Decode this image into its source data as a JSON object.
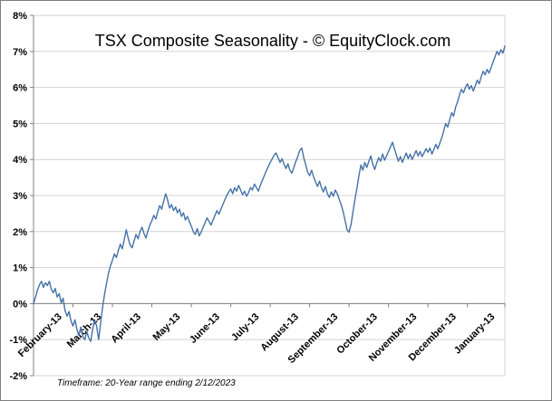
{
  "colors": {
    "line": "#4572a7",
    "grid": "#d3d3d3",
    "axis": "#808080",
    "tick_text": "#000000",
    "border": "#7f7f7f",
    "background": "#ffffff"
  },
  "chart_data": {
    "type": "line",
    "title": "TSX Composite Seasonality - © EquityClock.com",
    "footer_note": "Timeframe: 20-Year range ending 2/12/2023",
    "legend": "none",
    "grid": "horizontal",
    "x_axis": {
      "categories": [
        "February-13",
        "March-13",
        "April-13",
        "May-13",
        "June-13",
        "July-13",
        "August-13",
        "September-13",
        "October-13",
        "November-13",
        "December-13",
        "January-13"
      ],
      "points_per_month": 20
    },
    "y_axis": {
      "min": -2,
      "max": 8,
      "step": 1,
      "tick_labels": [
        "8%",
        "7%",
        "6%",
        "5%",
        "4%",
        "3%",
        "2%",
        "1%",
        "0%",
        "-1%",
        "-2%"
      ]
    },
    "series": [
      {
        "name": "TSX Composite Seasonality",
        "color": "#4572a7",
        "values": [
          0.0,
          0.18,
          0.38,
          0.52,
          0.62,
          0.45,
          0.58,
          0.5,
          0.62,
          0.4,
          0.3,
          0.42,
          0.18,
          0.28,
          0.02,
          0.15,
          -0.2,
          -0.35,
          -0.22,
          -0.48,
          -0.62,
          -0.45,
          -0.72,
          -0.88,
          -0.65,
          -0.92,
          -1.0,
          -0.78,
          -0.95,
          -1.05,
          -0.7,
          -0.45,
          -0.62,
          -1.0,
          -0.55,
          -0.1,
          0.25,
          0.55,
          0.85,
          1.05,
          1.2,
          1.38,
          1.28,
          1.48,
          1.65,
          1.52,
          1.78,
          2.05,
          1.82,
          1.62,
          1.55,
          1.75,
          1.92,
          1.8,
          2.0,
          2.12,
          1.95,
          1.82,
          2.02,
          2.18,
          2.3,
          2.45,
          2.35,
          2.55,
          2.72,
          2.62,
          2.85,
          3.05,
          2.88,
          2.65,
          2.75,
          2.58,
          2.68,
          2.52,
          2.62,
          2.42,
          2.52,
          2.32,
          2.42,
          2.28,
          2.15,
          2.0,
          1.92,
          2.08,
          1.88,
          1.98,
          2.12,
          2.25,
          2.38,
          2.28,
          2.18,
          2.32,
          2.45,
          2.58,
          2.48,
          2.62,
          2.75,
          2.88,
          3.0,
          3.1,
          3.18,
          3.05,
          3.22,
          3.12,
          3.28,
          3.15,
          3.02,
          3.12,
          2.98,
          3.08,
          3.22,
          3.15,
          3.32,
          3.22,
          3.12,
          3.28,
          3.42,
          3.55,
          3.68,
          3.8,
          3.92,
          4.02,
          4.12,
          4.18,
          4.05,
          3.92,
          4.02,
          3.88,
          3.75,
          3.88,
          3.7,
          3.62,
          3.78,
          3.95,
          4.08,
          4.25,
          4.32,
          4.05,
          3.85,
          3.65,
          3.55,
          3.7,
          3.52,
          3.38,
          3.25,
          3.4,
          3.22,
          3.1,
          3.25,
          3.05,
          2.95,
          3.1,
          2.98,
          3.15,
          3.05,
          2.9,
          2.75,
          2.55,
          2.3,
          2.05,
          1.98,
          2.2,
          2.55,
          2.9,
          3.2,
          3.55,
          3.85,
          3.7,
          3.92,
          3.78,
          3.95,
          4.1,
          3.88,
          3.72,
          3.9,
          4.05,
          3.95,
          4.15,
          3.98,
          4.1,
          4.22,
          4.35,
          4.48,
          4.3,
          4.12,
          3.95,
          4.08,
          3.92,
          4.05,
          4.18,
          4.02,
          4.15,
          4.0,
          4.12,
          4.25,
          4.1,
          4.22,
          4.08,
          4.18,
          4.3,
          4.2,
          4.32,
          4.15,
          4.28,
          4.42,
          4.3,
          4.45,
          4.6,
          4.8,
          5.0,
          4.9,
          5.1,
          5.3,
          5.2,
          5.45,
          5.6,
          5.8,
          5.95,
          5.85,
          6.0,
          6.1,
          5.95,
          6.05,
          5.9,
          6.05,
          6.2,
          6.1,
          6.3,
          6.45,
          6.35,
          6.5,
          6.4,
          6.55,
          6.7,
          6.85,
          7.0,
          6.9,
          7.05,
          6.95,
          7.15
        ]
      }
    ]
  }
}
